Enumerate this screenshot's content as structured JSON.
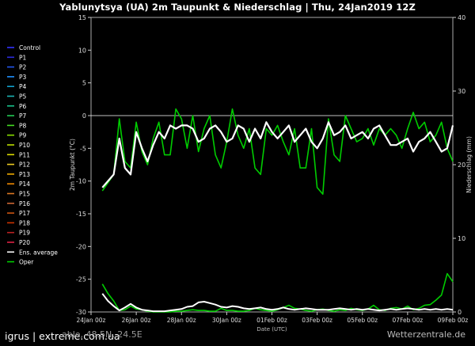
{
  "title": "Yablunytsya  (UA)  2m Taupunkt & Niederschlag | Thu, 24Jan2019 12Z",
  "footer": {
    "brand": "igrus | extreme.com.ua",
    "coords": "able, 48.5N, 24.5E",
    "site": "Wetterzentrale.de"
  },
  "colors": {
    "background": "#000000",
    "zero_line": "#ffffff",
    "ens_average": "#ffffff",
    "oper": "#00cc00"
  },
  "chart_data": {
    "type": "line",
    "xlabel": "Date (UTC)",
    "ylabel_left": "2m Taupunkt (°C)",
    "ylabel_right": "Niederschlag (mm)",
    "ylim_left": [
      -30,
      15
    ],
    "ylim_right": [
      0,
      40
    ],
    "yticks_left": [
      "15",
      "10",
      "5",
      "0",
      "-5",
      "-10",
      "-15",
      "-20",
      "-25",
      "-30"
    ],
    "yticks_right": [
      "40",
      "30",
      "20",
      "10",
      "0"
    ],
    "x_range_hours": [
      0,
      384
    ],
    "x_ticks": [
      {
        "label": "24Jan 00z",
        "hour": 0
      },
      {
        "label": "26Jan 00z",
        "hour": 48
      },
      {
        "label": "28Jan 00z",
        "hour": 96
      },
      {
        "label": "30Jan 00z",
        "hour": 144
      },
      {
        "label": "01Feb 00z",
        "hour": 192
      },
      {
        "label": "03Feb 00z",
        "hour": 240
      },
      {
        "label": "05Feb 00z",
        "hour": 288
      },
      {
        "label": "07Feb 00z",
        "hour": 336
      },
      {
        "label": "09Feb 00z",
        "hour": 384
      }
    ],
    "legend": [
      {
        "name": "Control",
        "color": "#3333ff"
      },
      {
        "name": "P1",
        "color": "#2b2bdd"
      },
      {
        "name": "P2",
        "color": "#2255ee"
      },
      {
        "name": "P3",
        "color": "#1e90ff"
      },
      {
        "name": "P4",
        "color": "#12a0cc"
      },
      {
        "name": "P5",
        "color": "#1ab4b4"
      },
      {
        "name": "P6",
        "color": "#18c08a"
      },
      {
        "name": "P7",
        "color": "#22cc55"
      },
      {
        "name": "P8",
        "color": "#44dd22"
      },
      {
        "name": "P9",
        "color": "#88dd00"
      },
      {
        "name": "P10",
        "color": "#bbdd00"
      },
      {
        "name": "P11",
        "color": "#dddd00"
      },
      {
        "name": "P12",
        "color": "#eecc22"
      },
      {
        "name": "P13",
        "color": "#eeaa00"
      },
      {
        "name": "P14",
        "color": "#ee8800"
      },
      {
        "name": "P15",
        "color": "#dd7722"
      },
      {
        "name": "P16",
        "color": "#cc6633"
      },
      {
        "name": "P17",
        "color": "#cc5511"
      },
      {
        "name": "P18",
        "color": "#cc3300"
      },
      {
        "name": "P19",
        "color": "#bb2222"
      },
      {
        "name": "P20",
        "color": "#dd2244"
      },
      {
        "name": "Ens. average",
        "color": "#ffffff"
      },
      {
        "name": "Oper",
        "color": "#00cc00"
      }
    ],
    "dewpoint_hours": [
      12,
      24,
      30,
      36,
      42,
      48,
      54,
      60,
      66,
      72,
      78,
      84,
      90,
      96,
      102,
      108,
      114,
      120,
      126,
      132,
      138,
      144,
      150,
      156,
      162,
      168,
      174,
      180,
      186,
      192,
      198,
      204,
      210,
      216,
      222,
      228,
      234,
      240,
      246,
      252,
      258,
      264,
      270,
      276,
      282,
      288,
      294,
      300,
      306,
      312,
      318,
      324,
      330,
      336,
      342,
      348,
      354,
      360,
      366,
      372,
      378,
      384
    ],
    "ens_average_dewpoint": [
      -11,
      -9,
      -3.5,
      -8,
      -9,
      -2.5,
      -5,
      -7,
      -4.5,
      -2.5,
      -3.5,
      -1.5,
      -2,
      -1.5,
      -1.5,
      -2,
      -4,
      -3.5,
      -2,
      -1.5,
      -2.5,
      -4,
      -3.5,
      -1.5,
      -2,
      -4,
      -2,
      -3.5,
      -1,
      -2.5,
      -3.5,
      -2.5,
      -1.5,
      -4,
      -3,
      -2,
      -4,
      -5,
      -3.5,
      -1,
      -3,
      -2.5,
      -1.5,
      -3.5,
      -3,
      -2.5,
      -3.5,
      -2,
      -1.5,
      -3,
      -4.5,
      -4.5,
      -4,
      -3.5,
      -5.5,
      -4,
      -3.5,
      -2.5,
      -4,
      -5.5,
      -5,
      -1.5
    ],
    "oper_dewpoint": [
      -11.5,
      -9,
      -0.5,
      -7,
      -8,
      -1,
      -5.5,
      -7.5,
      -3.5,
      -1,
      -6,
      -6,
      1,
      -0.5,
      -5,
      0,
      -5.5,
      -2,
      0,
      -6,
      -8,
      -4,
      1,
      -3,
      -5,
      -2,
      -8,
      -9,
      -2,
      -3,
      -1.5,
      -4,
      -6,
      -2,
      -8,
      -8,
      -2,
      -11,
      -12,
      -0.5,
      -6,
      -7,
      0,
      -2,
      -4,
      -3.5,
      -2,
      -4.5,
      -2,
      -3,
      -2,
      -3,
      -5,
      -2,
      0.5,
      -2,
      -1,
      -4,
      -3,
      -1,
      -5,
      -7
    ],
    "precip_hours": [
      12,
      18,
      24,
      30,
      36,
      42,
      48,
      54,
      60,
      66,
      72,
      78,
      84,
      90,
      96,
      102,
      108,
      114,
      120,
      126,
      132,
      138,
      144,
      150,
      156,
      162,
      168,
      174,
      180,
      186,
      192,
      198,
      204,
      210,
      216,
      222,
      228,
      234,
      240,
      246,
      252,
      258,
      264,
      270,
      276,
      282,
      288,
      294,
      300,
      306,
      312,
      318,
      324,
      330,
      336,
      342,
      348,
      354,
      360,
      366,
      372,
      378,
      384
    ],
    "ens_average_precip": [
      2.5,
      1.5,
      0.8,
      0.2,
      0.6,
      1.1,
      0.6,
      0.3,
      0.2,
      0.1,
      0.1,
      0.1,
      0.2,
      0.3,
      0.4,
      0.7,
      0.8,
      1.3,
      1.4,
      1.2,
      1.0,
      0.7,
      0.6,
      0.8,
      0.7,
      0.5,
      0.4,
      0.5,
      0.6,
      0.4,
      0.3,
      0.4,
      0.6,
      0.4,
      0.3,
      0.4,
      0.5,
      0.4,
      0.3,
      0.3,
      0.3,
      0.4,
      0.5,
      0.4,
      0.3,
      0.4,
      0.3,
      0.4,
      0.3,
      0.2,
      0.3,
      0.4,
      0.3,
      0.4,
      0.5,
      0.4,
      0.3,
      0.4,
      0.3,
      0.4,
      0.3,
      0.4,
      0.3
    ],
    "oper_precip": [
      3.8,
      2.5,
      1.5,
      0.2,
      0.3,
      0.8,
      0.4,
      0.3,
      0.1,
      0,
      0,
      0,
      0,
      0.1,
      0.1,
      0.2,
      0.3,
      0.2,
      0.2,
      0.1,
      0.1,
      0.5,
      0.2,
      0.2,
      0.1,
      0.1,
      0.2,
      0.5,
      0.3,
      0.2,
      0.1,
      0.3,
      0.6,
      0.9,
      0.5,
      0.4,
      0.2,
      0.1,
      0.3,
      0.4,
      0.2,
      0.1,
      0.3,
      0.2,
      0.5,
      0.3,
      0.2,
      0.4,
      0.9,
      0.3,
      0.2,
      0.5,
      0.6,
      0.4,
      0.8,
      0.3,
      0.5,
      0.9,
      1.0,
      1.6,
      2.3,
      5.2,
      4.1
    ]
  }
}
